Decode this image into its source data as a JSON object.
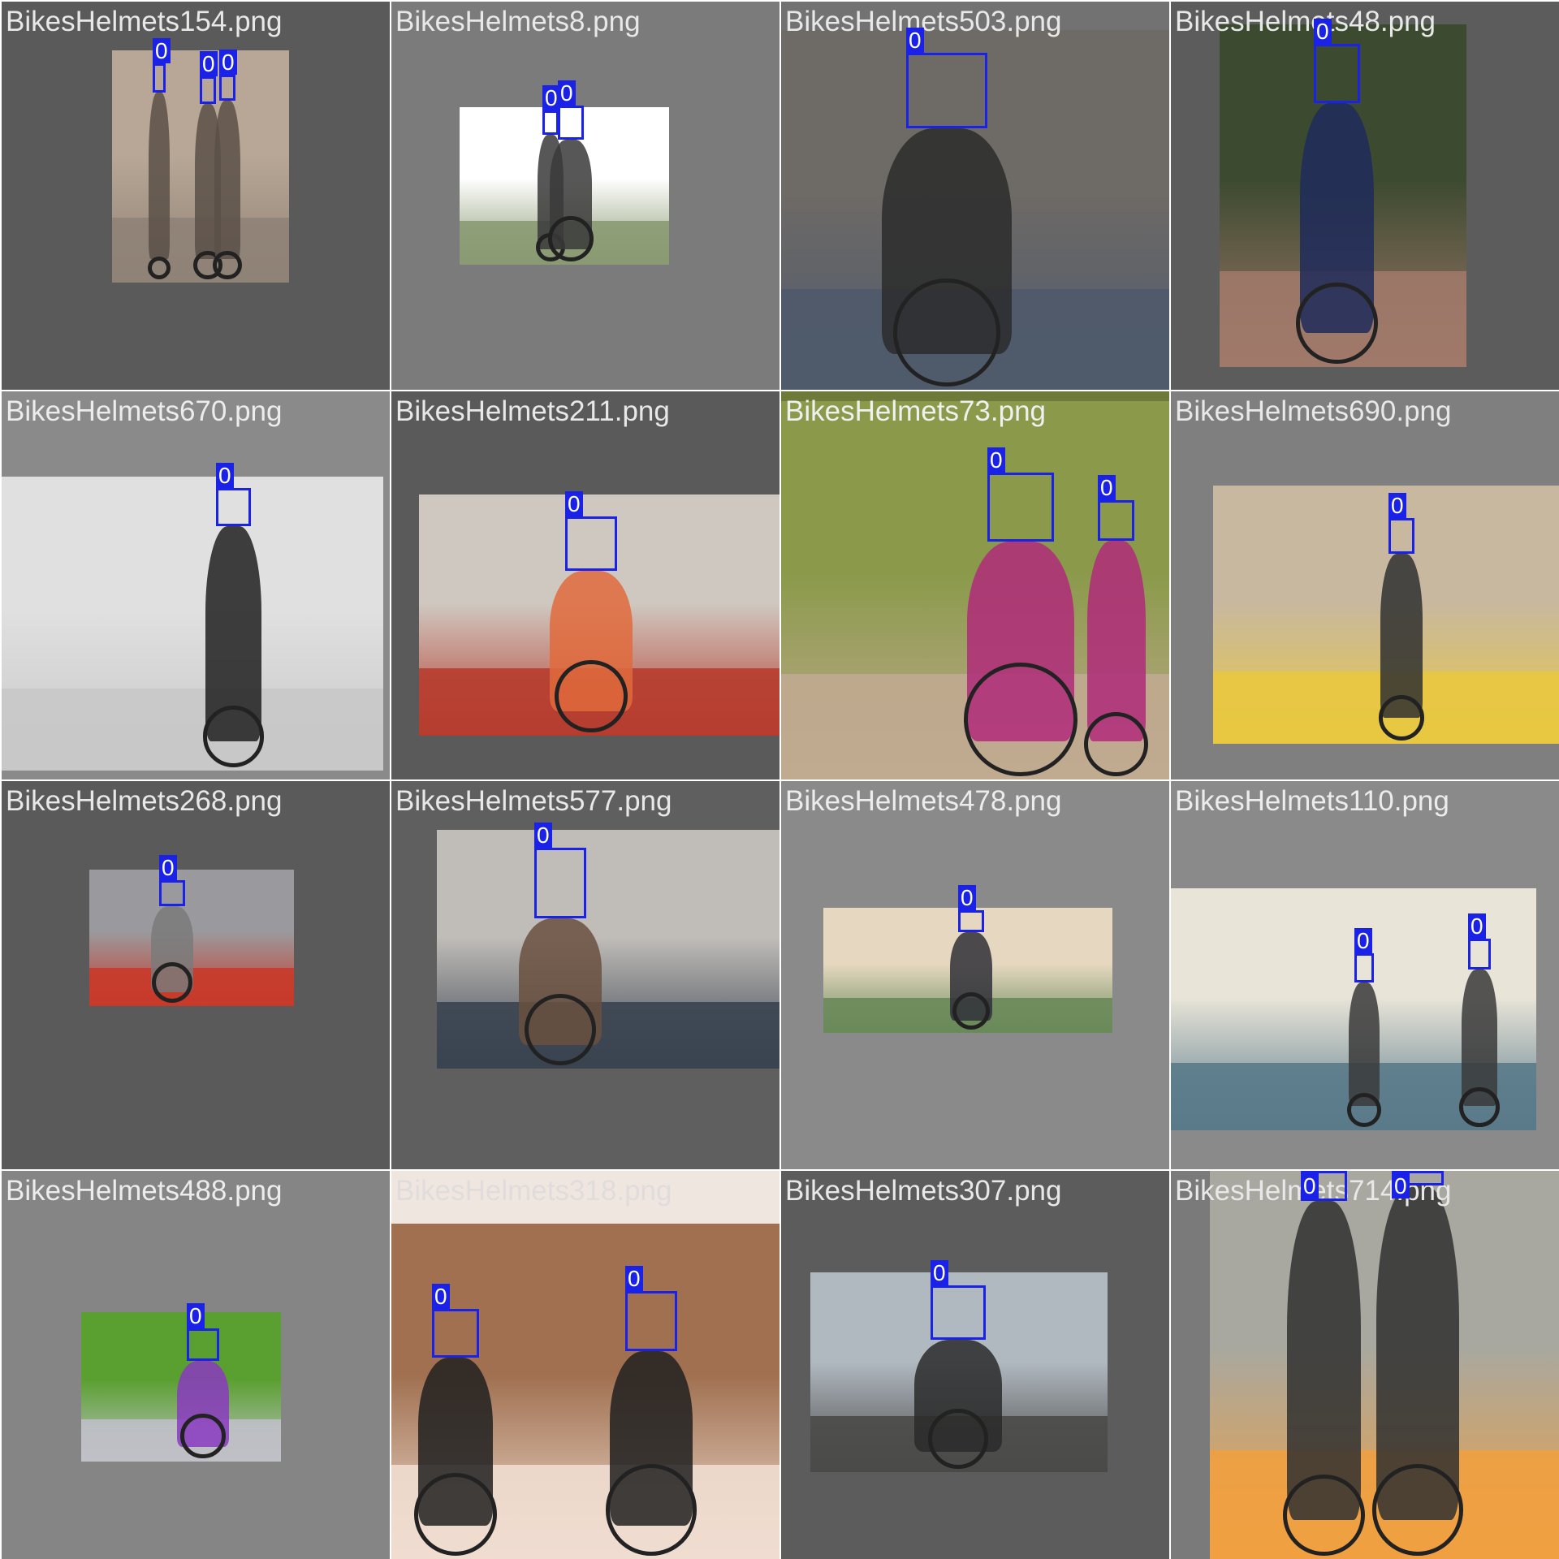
{
  "colors": {
    "bbox": "#1a22e8",
    "bbox_label_text": "#ffffff"
  },
  "tiles": [
    {
      "filename": "BikesHelmets154.png",
      "background": "#5a5a5a",
      "label_color": "#e8e8e8",
      "photo_colors": [
        "#b8a796",
        "#8f8277",
        "#5b5048"
      ],
      "boxes": [
        {
          "label": "0"
        },
        {
          "label": "0"
        },
        {
          "label": "0"
        }
      ]
    },
    {
      "filename": "BikesHelmets8.png",
      "background": "#7b7b7b",
      "label_color": "#e8e8e8",
      "photo_colors": [
        "#ffffff",
        "#8a9a72",
        "#3a3a3a"
      ],
      "boxes": [
        {
          "label": "0"
        },
        {
          "label": "0"
        }
      ]
    },
    {
      "filename": "BikesHelmets503.png",
      "background": "#727272",
      "label_color": "#e8e8e8",
      "photo_colors": [
        "#6e6a66",
        "#4f5a6c",
        "#2c2c2c"
      ],
      "boxes": [
        {
          "label": "0"
        }
      ]
    },
    {
      "filename": "BikesHelmets48.png",
      "background": "#5c5c5c",
      "label_color": "#e8e8e8",
      "photo_colors": [
        "#3c4a30",
        "#a0796a",
        "#1e2a5a"
      ],
      "boxes": [
        {
          "label": "0"
        }
      ]
    },
    {
      "filename": "BikesHelmets670.png",
      "background": "#8a8a8a",
      "label_color": "#ececec",
      "photo_colors": [
        "#e0e0e0",
        "#c8c8c8",
        "#202020"
      ],
      "boxes": [
        {
          "label": "0"
        }
      ]
    },
    {
      "filename": "BikesHelmets211.png",
      "background": "#5a5a5a",
      "label_color": "#e8e8e8",
      "photo_colors": [
        "#cfc8c0",
        "#b63d2f",
        "#e06a3c"
      ],
      "boxes": [
        {
          "label": "0"
        }
      ]
    },
    {
      "filename": "BikesHelmets73.png",
      "background": "#6e7a3a",
      "label_color": "#f0f0f0",
      "photo_colors": [
        "#8a9a4a",
        "#c0aa90",
        "#b02a7a"
      ],
      "boxes": [
        {
          "label": "0"
        },
        {
          "label": "0"
        }
      ]
    },
    {
      "filename": "BikesHelmets690.png",
      "background": "#7f7f7f",
      "label_color": "#e8e8e8",
      "photo_colors": [
        "#c8b8a0",
        "#e8c840",
        "#303030"
      ],
      "boxes": [
        {
          "label": "0"
        }
      ]
    },
    {
      "filename": "BikesHelmets268.png",
      "background": "#5a5a5a",
      "label_color": "#e8e8e8",
      "photo_colors": [
        "#9a9a9e",
        "#c83a2a",
        "#7a7a7a"
      ],
      "boxes": [
        {
          "label": "0"
        }
      ]
    },
    {
      "filename": "BikesHelmets577.png",
      "background": "#5f5f5f",
      "label_color": "#e8e8e8",
      "photo_colors": [
        "#c0bcb8",
        "#3a4450",
        "#6a5040"
      ],
      "boxes": [
        {
          "label": "0"
        }
      ]
    },
    {
      "filename": "BikesHelmets478.png",
      "background": "#8a8a8a",
      "label_color": "#ececec",
      "photo_colors": [
        "#e6d8c0",
        "#6a8a5a",
        "#303038"
      ],
      "boxes": [
        {
          "label": "0"
        }
      ]
    },
    {
      "filename": "BikesHelmets110.png",
      "background": "#8a8a8a",
      "label_color": "#ececec",
      "photo_colors": [
        "#e8e4d8",
        "#5a7a8a",
        "#3a3a3a"
      ],
      "boxes": [
        {
          "label": "0"
        },
        {
          "label": "0"
        }
      ]
    },
    {
      "filename": "BikesHelmets488.png",
      "background": "#858585",
      "label_color": "#ececec",
      "photo_colors": [
        "#5aa030",
        "#c0c0c8",
        "#8a3ac0"
      ],
      "boxes": [
        {
          "label": "0"
        }
      ]
    },
    {
      "filename": "BikesHelmets318.png",
      "background": "#f0e6e0",
      "label_color": "#e0dcdc",
      "photo_colors": [
        "#a07050",
        "#f0ddd0",
        "#202020"
      ],
      "boxes": [
        {
          "label": "0"
        },
        {
          "label": "0"
        }
      ]
    },
    {
      "filename": "BikesHelmets307.png",
      "background": "#5c5c5c",
      "label_color": "#e8e8e8",
      "photo_colors": [
        "#b0b8c0",
        "#4a4a48",
        "#2a2a2a"
      ],
      "boxes": [
        {
          "label": "0"
        }
      ]
    },
    {
      "filename": "BikesHelmets714.png",
      "background": "#7a7a7a",
      "label_color": "#e8e8e8",
      "photo_colors": [
        "#a8a8a0",
        "#f0a040",
        "#303030"
      ],
      "boxes": [
        {
          "label": "0"
        },
        {
          "label": "0"
        }
      ]
    }
  ]
}
